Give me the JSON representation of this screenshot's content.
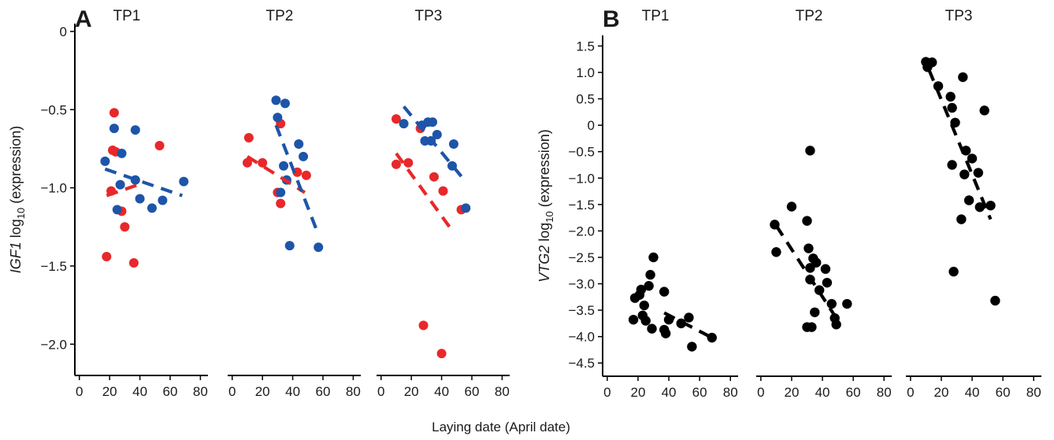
{
  "figure": {
    "x_axis_title": "Laying date (April date)",
    "colors": {
      "red": "#e8282a",
      "blue": "#1d55a8",
      "black": "#000000"
    }
  },
  "chart_data": [
    {
      "type": "scatter",
      "panel": "A",
      "facets": [
        "TP1",
        "TP2",
        "TP3"
      ],
      "ylabel_italic": "IGF1",
      "ylabel_rest": " log",
      "ylabel_sub": "10",
      "ylabel_suffix": " (expression)",
      "ylim": [
        -2.2,
        0.05
      ],
      "xlim": [
        -3,
        85
      ],
      "xticks": [
        0,
        20,
        40,
        60,
        80
      ],
      "yticks": [
        0,
        -0.5,
        -1.0,
        -1.5,
        -2.0
      ],
      "ytick_labels": [
        "0",
        "-0.5",
        "-1.0",
        "-1.5",
        "-2.0"
      ],
      "grid": false,
      "legend": "none",
      "series": [
        {
          "color": "red",
          "points": [
            [
              [
                18,
                -1.44
              ],
              [
                21,
                -1.02
              ],
              [
                22,
                -0.76
              ],
              [
                23,
                -0.52
              ],
              [
                24,
                -0.77
              ],
              [
                28,
                -1.15
              ],
              [
                30,
                -1.25
              ],
              [
                36,
                -1.48
              ],
              [
                53,
                -0.73
              ]
            ],
            [
              [
                10,
                -0.84
              ],
              [
                11,
                -0.68
              ],
              [
                20,
                -0.84
              ],
              [
                30,
                -1.03
              ],
              [
                32,
                -0.59
              ],
              [
                32,
                -1.1
              ],
              [
                43,
                -0.9
              ],
              [
                49,
                -0.92
              ]
            ],
            [
              [
                10,
                -0.85
              ],
              [
                10,
                -0.56
              ],
              [
                18,
                -0.84
              ],
              [
                26,
                -0.62
              ],
              [
                28,
                -1.88
              ],
              [
                35,
                -0.93
              ],
              [
                40,
                -2.06
              ],
              [
                41,
                -1.02
              ],
              [
                53,
                -1.14
              ]
            ]
          ],
          "trend": [
            [
              [
                18,
                -1.05
              ],
              [
                42,
                -0.97
              ]
            ],
            [
              [
                10,
                -0.8
              ],
              [
                48,
                -1.03
              ]
            ],
            [
              [
                10,
                -0.78
              ],
              [
                46,
                -1.26
              ]
            ]
          ]
        },
        {
          "color": "blue",
          "points": [
            [
              [
                17,
                -0.83
              ],
              [
                23,
                -0.62
              ],
              [
                25,
                -1.14
              ],
              [
                27,
                -0.98
              ],
              [
                28,
                -0.78
              ],
              [
                37,
                -0.63
              ],
              [
                37,
                -0.95
              ],
              [
                40,
                -1.07
              ],
              [
                48,
                -1.13
              ],
              [
                55,
                -1.08
              ],
              [
                69,
                -0.96
              ]
            ],
            [
              [
                29,
                -0.44
              ],
              [
                30,
                -0.55
              ],
              [
                32,
                -1.03
              ],
              [
                34,
                -0.86
              ],
              [
                35,
                -0.46
              ],
              [
                36,
                -0.95
              ],
              [
                38,
                -1.37
              ],
              [
                44,
                -0.72
              ],
              [
                47,
                -0.8
              ],
              [
                57,
                -1.38
              ]
            ],
            [
              [
                15,
                -0.59
              ],
              [
                27,
                -0.6
              ],
              [
                29,
                -0.7
              ],
              [
                31,
                -0.58
              ],
              [
                33,
                -0.7
              ],
              [
                34,
                -0.58
              ],
              [
                37,
                -0.66
              ],
              [
                47,
                -0.86
              ],
              [
                48,
                -0.72
              ],
              [
                56,
                -1.13
              ]
            ]
          ],
          "trend": [
            [
              [
                17,
                -0.88
              ],
              [
                68,
                -1.05
              ]
            ],
            [
              [
                29,
                -0.6
              ],
              [
                57,
                -1.3
              ]
            ],
            [
              [
                15,
                -0.48
              ],
              [
                55,
                -0.95
              ]
            ]
          ]
        }
      ]
    },
    {
      "type": "scatter",
      "panel": "B",
      "facets": [
        "TP1",
        "TP2",
        "TP3"
      ],
      "ylabel_italic": "VTG2",
      "ylabel_rest": " log",
      "ylabel_sub": "10",
      "ylabel_suffix": " (expression)",
      "ylim": [
        -4.75,
        1.7
      ],
      "xlim": [
        -3,
        85
      ],
      "xticks": [
        0,
        20,
        40,
        60,
        80
      ],
      "yticks": [
        1.5,
        1.0,
        0.5,
        0,
        -0.5,
        -1.0,
        -1.5,
        -2.0,
        -2.5,
        -3.0,
        -3.5,
        -4.0,
        -4.5
      ],
      "ytick_labels": [
        "1.5",
        "1.0",
        "0.5",
        "0",
        "-0.5",
        "-1.0",
        "-1.5",
        "-2.0",
        "-2.5",
        "-3.0",
        "-3.5",
        "-4.0",
        "-4.5"
      ],
      "grid": false,
      "legend": "none",
      "series": [
        {
          "color": "black",
          "points": [
            [
              [
                17,
                -3.68
              ],
              [
                18,
                -3.27
              ],
              [
                21,
                -3.21
              ],
              [
                22,
                -3.11
              ],
              [
                23,
                -3.6
              ],
              [
                24,
                -3.41
              ],
              [
                25,
                -3.7
              ],
              [
                27,
                -3.04
              ],
              [
                28,
                -2.83
              ],
              [
                29,
                -3.85
              ],
              [
                30,
                -2.5
              ],
              [
                37,
                -3.87
              ],
              [
                37,
                -3.15
              ],
              [
                38,
                -3.94
              ],
              [
                40,
                -3.68
              ],
              [
                48,
                -3.75
              ],
              [
                53,
                -3.64
              ],
              [
                55,
                -4.19
              ],
              [
                68,
                -4.02
              ]
            ],
            [
              [
                9,
                -1.88
              ],
              [
                10,
                -2.4
              ],
              [
                20,
                -1.54
              ],
              [
                30,
                -1.81
              ],
              [
                30,
                -3.82
              ],
              [
                31,
                -2.33
              ],
              [
                32,
                -0.48
              ],
              [
                32,
                -2.7
              ],
              [
                32,
                -2.92
              ],
              [
                33,
                -3.82
              ],
              [
                34,
                -2.52
              ],
              [
                35,
                -3.54
              ],
              [
                36,
                -2.6
              ],
              [
                38,
                -3.12
              ],
              [
                42,
                -2.72
              ],
              [
                43,
                -2.98
              ],
              [
                46,
                -3.38
              ],
              [
                48,
                -3.65
              ],
              [
                49,
                -3.77
              ],
              [
                56,
                -3.38
              ]
            ],
            [
              [
                10,
                1.2
              ],
              [
                11,
                1.1
              ],
              [
                14,
                1.19
              ],
              [
                18,
                0.74
              ],
              [
                26,
                0.54
              ],
              [
                27,
                -0.75
              ],
              [
                27,
                0.33
              ],
              [
                28,
                -2.77
              ],
              [
                29,
                0.05
              ],
              [
                33,
                -1.78
              ],
              [
                34,
                0.91
              ],
              [
                35,
                -0.93
              ],
              [
                36,
                -0.48
              ],
              [
                38,
                -1.42
              ],
              [
                40,
                -0.63
              ],
              [
                44,
                -0.9
              ],
              [
                45,
                -1.55
              ],
              [
                48,
                0.28
              ],
              [
                52,
                -1.52
              ],
              [
                55,
                -3.32
              ]
            ]
          ],
          "trend": [
            [
              [
                37,
                -3.55
              ],
              [
                68,
                -4.02
              ]
            ],
            [
              [
                10,
                -1.9
              ],
              [
                49,
                -3.65
              ]
            ],
            [
              [
                12,
                1.05
              ],
              [
                52,
                -1.78
              ]
            ]
          ]
        }
      ]
    }
  ]
}
